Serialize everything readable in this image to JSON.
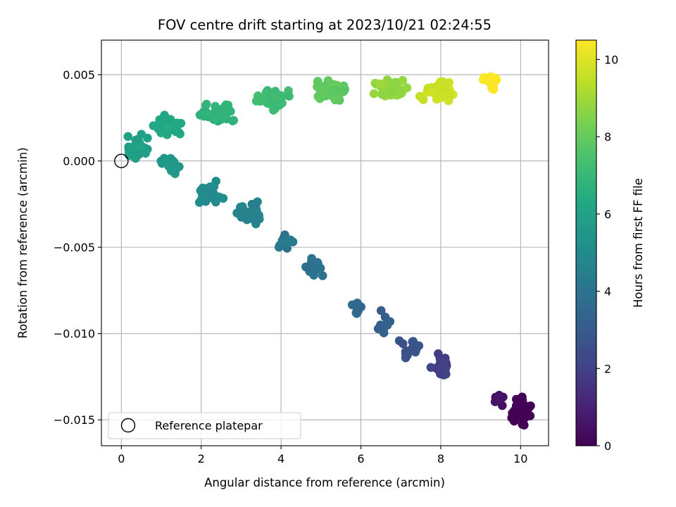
{
  "chart_data": {
    "type": "scatter",
    "title": "FOV centre drift starting at 2023/10/21 02:24:55",
    "xlabel": "Angular distance from reference (arcmin)",
    "ylabel": "Rotation from reference (arcmin)",
    "xlim": [
      -0.5,
      10.7
    ],
    "ylim": [
      -0.0165,
      0.007
    ],
    "xticks": [
      0,
      2,
      4,
      6,
      8,
      10
    ],
    "yticks": [
      0.005,
      0.0,
      -0.005,
      -0.01,
      -0.015
    ],
    "xtick_labels": [
      "0",
      "2",
      "4",
      "6",
      "8",
      "10"
    ],
    "ytick_labels": [
      "0.005",
      "0.000",
      "−0.005",
      "−0.010",
      "−0.015"
    ],
    "grid": true,
    "colormap": "viridis",
    "colorbar": {
      "label": "Hours from first FF file",
      "range": [
        0,
        10.5
      ],
      "ticks": [
        0,
        2,
        4,
        6,
        8,
        10
      ],
      "tick_labels": [
        "0",
        "2",
        "4",
        "6",
        "8",
        "10"
      ]
    },
    "legend": {
      "position": "lower-left",
      "entries": [
        "Reference platepar"
      ]
    },
    "reference_point": {
      "x": 0,
      "y": 0
    },
    "drift_path": [
      {
        "x": 10.0,
        "y": -0.0145,
        "hours": 0.0,
        "spread_x": 0.35,
        "spread_y": 0.0012,
        "count": 30
      },
      {
        "x": 9.4,
        "y": -0.0138,
        "hours": 0.6,
        "spread_x": 0.2,
        "spread_y": 0.0008,
        "count": 6
      },
      {
        "x": 8.0,
        "y": -0.0118,
        "hours": 2.0,
        "spread_x": 0.3,
        "spread_y": 0.0008,
        "count": 22
      },
      {
        "x": 7.2,
        "y": -0.0108,
        "hours": 2.7,
        "spread_x": 0.4,
        "spread_y": 0.001,
        "count": 16
      },
      {
        "x": 6.6,
        "y": -0.0095,
        "hours": 3.2,
        "spread_x": 0.3,
        "spread_y": 0.001,
        "count": 10
      },
      {
        "x": 5.9,
        "y": -0.0085,
        "hours": 3.5,
        "spread_x": 0.2,
        "spread_y": 0.0008,
        "count": 10
      },
      {
        "x": 4.8,
        "y": -0.0062,
        "hours": 3.9,
        "spread_x": 0.35,
        "spread_y": 0.0008,
        "count": 18
      },
      {
        "x": 4.1,
        "y": -0.0048,
        "hours": 4.2,
        "spread_x": 0.35,
        "spread_y": 0.0008,
        "count": 14
      },
      {
        "x": 3.2,
        "y": -0.003,
        "hours": 4.6,
        "spread_x": 0.45,
        "spread_y": 0.0008,
        "count": 22
      },
      {
        "x": 2.2,
        "y": -0.0018,
        "hours": 5.0,
        "spread_x": 0.45,
        "spread_y": 0.001,
        "count": 26
      },
      {
        "x": 1.2,
        "y": -0.0002,
        "hours": 5.5,
        "spread_x": 0.4,
        "spread_y": 0.0007,
        "count": 24
      },
      {
        "x": 0.4,
        "y": 0.0008,
        "hours": 5.9,
        "spread_x": 0.35,
        "spread_y": 0.0008,
        "count": 40
      },
      {
        "x": 1.2,
        "y": 0.002,
        "hours": 6.3,
        "spread_x": 0.5,
        "spread_y": 0.0008,
        "count": 40
      },
      {
        "x": 2.4,
        "y": 0.0028,
        "hours": 6.7,
        "spread_x": 0.6,
        "spread_y": 0.0008,
        "count": 40
      },
      {
        "x": 3.8,
        "y": 0.0036,
        "hours": 7.2,
        "spread_x": 0.6,
        "spread_y": 0.0008,
        "count": 45
      },
      {
        "x": 5.3,
        "y": 0.0041,
        "hours": 7.9,
        "spread_x": 0.6,
        "spread_y": 0.0008,
        "count": 50
      },
      {
        "x": 6.7,
        "y": 0.0041,
        "hours": 8.8,
        "spread_x": 0.6,
        "spread_y": 0.0008,
        "count": 50
      },
      {
        "x": 8.0,
        "y": 0.004,
        "hours": 9.7,
        "spread_x": 0.6,
        "spread_y": 0.0008,
        "count": 45
      },
      {
        "x": 9.3,
        "y": 0.0045,
        "hours": 10.5,
        "spread_x": 0.35,
        "spread_y": 0.0006,
        "count": 14
      }
    ]
  }
}
